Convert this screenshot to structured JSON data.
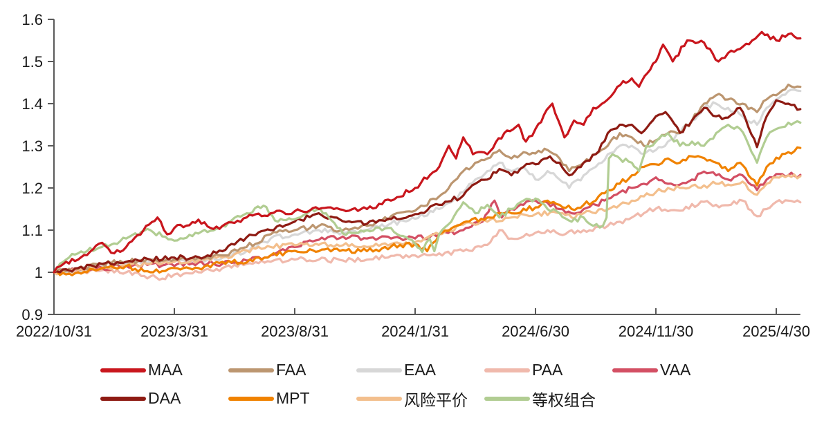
{
  "chart_data": {
    "type": "line",
    "title": "",
    "xlabel": "",
    "ylabel": "",
    "x_unit": "months since 2022/10/31",
    "ylim": [
      0.9,
      1.6
    ],
    "y_tick_labels": [
      "0.9",
      "1",
      "1.1",
      "1.2",
      "1.3",
      "1.4",
      "1.5",
      "1.6"
    ],
    "x_tick_labels": [
      "2022/10/31",
      "2023/3/31",
      "2023/8/31",
      "2024/1/31",
      "2024/6/30",
      "2024/11/30",
      "2025/4/30"
    ],
    "x_tick_months": [
      0,
      5,
      10,
      15,
      20,
      25,
      30
    ],
    "end_month": 31,
    "grid": false,
    "legend_position": "bottom",
    "legend_rows": [
      [
        "MAA",
        "FAA",
        "EAA",
        "PAA",
        "VAA"
      ],
      [
        "DAA",
        "MPT",
        "风险平价",
        "等权组合"
      ]
    ],
    "draw_order": [
      "PAA",
      "EAA",
      "VAA",
      "风险平价",
      "MPT",
      "FAA",
      "DAA",
      "等权组合",
      "MAA"
    ],
    "axis_color": "#595959",
    "label_color": "#1a1a1a",
    "series": [
      {
        "name": "MAA",
        "color": "#C9161D",
        "x": [
          0,
          0.5,
          1,
          2,
          2.5,
          3,
          4.3,
          4.7,
          5,
          6,
          6.5,
          7,
          8,
          9,
          10,
          11,
          12,
          13,
          14,
          15,
          16,
          16.4,
          16.7,
          17,
          17.4,
          18,
          18.7,
          19.3,
          19.6,
          20,
          20.7,
          21.2,
          21.6,
          22,
          22.4,
          23,
          23.4,
          24,
          24.3,
          25,
          25.3,
          25.7,
          26.3,
          27,
          27.6,
          28,
          29,
          29.4,
          30,
          30.5,
          31
        ],
        "y": [
          1.0,
          1.025,
          1.03,
          1.07,
          1.045,
          1.06,
          1.13,
          1.09,
          1.105,
          1.125,
          1.105,
          1.11,
          1.13,
          1.14,
          1.145,
          1.15,
          1.148,
          1.15,
          1.17,
          1.2,
          1.25,
          1.3,
          1.27,
          1.32,
          1.28,
          1.28,
          1.33,
          1.35,
          1.31,
          1.34,
          1.4,
          1.32,
          1.36,
          1.35,
          1.39,
          1.41,
          1.44,
          1.46,
          1.44,
          1.5,
          1.54,
          1.5,
          1.55,
          1.545,
          1.5,
          1.52,
          1.55,
          1.57,
          1.55,
          1.565,
          1.555
        ]
      },
      {
        "name": "FAA",
        "color": "#BC9670",
        "x": [
          0,
          1,
          2,
          3,
          4,
          5,
          6,
          7,
          8,
          9,
          10,
          11,
          12,
          13,
          14,
          15,
          16,
          16.5,
          17,
          17.5,
          18,
          18.5,
          19,
          19.5,
          20,
          20.5,
          21,
          21.4,
          22,
          22.5,
          23,
          23.5,
          24,
          24.5,
          25,
          25.5,
          26,
          26.5,
          27,
          27.5,
          28,
          28.6,
          29.2,
          29.6,
          30,
          30.5,
          31
        ],
        "y": [
          1.0,
          1.008,
          1.02,
          1.025,
          1.03,
          1.03,
          1.035,
          1.04,
          1.06,
          1.09,
          1.1,
          1.11,
          1.1,
          1.11,
          1.133,
          1.146,
          1.18,
          1.21,
          1.24,
          1.26,
          1.27,
          1.29,
          1.27,
          1.285,
          1.282,
          1.29,
          1.27,
          1.24,
          1.26,
          1.28,
          1.3,
          1.33,
          1.32,
          1.3,
          1.313,
          1.33,
          1.33,
          1.36,
          1.4,
          1.42,
          1.41,
          1.4,
          1.38,
          1.41,
          1.42,
          1.445,
          1.44
        ]
      },
      {
        "name": "EAA",
        "color": "#D7D7D7",
        "x": [
          0,
          1,
          2,
          3,
          4,
          5,
          6,
          7,
          8,
          9,
          10,
          11,
          12,
          13,
          14,
          15,
          16,
          17,
          17.5,
          18,
          18.5,
          19,
          19.5,
          20,
          20.5,
          21,
          21.4,
          22,
          22.5,
          23,
          23.5,
          24,
          24.5,
          25,
          25.5,
          26,
          26.5,
          27,
          27.5,
          28,
          28.6,
          29.2,
          29.6,
          30,
          30.5,
          31
        ],
        "y": [
          1.0,
          1.005,
          1.015,
          1.02,
          1.025,
          1.025,
          1.03,
          1.035,
          1.05,
          1.08,
          1.09,
          1.1,
          1.095,
          1.1,
          1.116,
          1.127,
          1.15,
          1.19,
          1.22,
          1.24,
          1.26,
          1.24,
          1.25,
          1.22,
          1.24,
          1.22,
          1.2,
          1.23,
          1.25,
          1.28,
          1.3,
          1.3,
          1.28,
          1.29,
          1.31,
          1.33,
          1.36,
          1.39,
          1.4,
          1.39,
          1.37,
          1.35,
          1.39,
          1.41,
          1.43,
          1.43
        ]
      },
      {
        "name": "PAA",
        "color": "#F0B9AC",
        "x": [
          0,
          1,
          2,
          3,
          4,
          4.5,
          5,
          6,
          7,
          8,
          9,
          10,
          11,
          12,
          13,
          14,
          15,
          16,
          17,
          18,
          18.5,
          19,
          19.5,
          20,
          20.5,
          21,
          22,
          23,
          23.5,
          24,
          24.5,
          25,
          25.5,
          26,
          27,
          27.5,
          28,
          28.6,
          29.2,
          29.6,
          30,
          30.5,
          31
        ],
        "y": [
          1.0,
          0.998,
          1.005,
          1.0,
          0.99,
          0.985,
          0.995,
          1.0,
          1.01,
          1.02,
          1.025,
          1.03,
          1.03,
          1.028,
          1.03,
          1.039,
          1.04,
          1.045,
          1.05,
          1.065,
          1.1,
          1.08,
          1.085,
          1.094,
          1.1,
          1.09,
          1.1,
          1.11,
          1.12,
          1.13,
          1.14,
          1.151,
          1.145,
          1.146,
          1.167,
          1.16,
          1.159,
          1.17,
          1.133,
          1.15,
          1.167,
          1.17,
          1.166
        ]
      },
      {
        "name": "VAA",
        "color": "#D34F63",
        "x": [
          0,
          1,
          2,
          3,
          4,
          5,
          6,
          7,
          8,
          9,
          10,
          11,
          12,
          13,
          14,
          15,
          16,
          17,
          17.8,
          18.3,
          18.6,
          19,
          19.5,
          20,
          20.5,
          21,
          21.5,
          22,
          22.5,
          23,
          23.5,
          24,
          24.5,
          25,
          25.5,
          26,
          26.5,
          27,
          27.5,
          28,
          28.6,
          29.2,
          29.6,
          30,
          30.5,
          31
        ],
        "y": [
          1.0,
          1.005,
          1.01,
          1.015,
          1.02,
          1.015,
          1.023,
          1.02,
          1.028,
          1.04,
          1.06,
          1.077,
          1.085,
          1.08,
          1.08,
          1.08,
          1.09,
          1.1,
          1.12,
          1.17,
          1.13,
          1.15,
          1.16,
          1.17,
          1.165,
          1.15,
          1.14,
          1.15,
          1.16,
          1.175,
          1.19,
          1.2,
          1.21,
          1.225,
          1.21,
          1.208,
          1.22,
          1.239,
          1.23,
          1.22,
          1.23,
          1.195,
          1.22,
          1.233,
          1.23,
          1.231
        ]
      },
      {
        "name": "DAA",
        "color": "#8E1B13",
        "x": [
          0,
          1,
          2,
          3,
          4,
          5,
          6,
          7,
          8,
          9,
          10,
          11,
          12,
          13,
          14,
          15,
          16,
          17,
          17.5,
          18,
          18.5,
          19,
          19.5,
          20,
          20.6,
          21,
          21.4,
          22,
          22.5,
          23,
          23.5,
          24,
          24.4,
          25,
          25.4,
          26,
          26.5,
          27,
          27.5,
          28,
          28.5,
          29.2,
          29.6,
          30,
          30.5,
          31
        ],
        "y": [
          1.0,
          1.01,
          1.02,
          1.025,
          1.03,
          1.035,
          1.036,
          1.05,
          1.083,
          1.1,
          1.12,
          1.14,
          1.121,
          1.115,
          1.126,
          1.138,
          1.16,
          1.182,
          1.21,
          1.22,
          1.245,
          1.23,
          1.25,
          1.256,
          1.275,
          1.26,
          1.23,
          1.26,
          1.28,
          1.33,
          1.35,
          1.35,
          1.33,
          1.37,
          1.38,
          1.331,
          1.36,
          1.39,
          1.37,
          1.367,
          1.39,
          1.297,
          1.37,
          1.408,
          1.4,
          1.387
        ]
      },
      {
        "name": "MPT",
        "color": "#F08200",
        "x": [
          0,
          0.5,
          1,
          2,
          3,
          4,
          5,
          6,
          7,
          8,
          9,
          10,
          11,
          12,
          13,
          14,
          15,
          15.5,
          16,
          17,
          18,
          19,
          20,
          20.5,
          21,
          21.5,
          22,
          22.5,
          23,
          23.5,
          24,
          24.5,
          25,
          25.5,
          26,
          26.5,
          27,
          27.5,
          28,
          28.5,
          29.2,
          29.6,
          30,
          30.5,
          31
        ],
        "y": [
          1.0,
          0.995,
          1.0,
          1.01,
          1.015,
          1.0,
          1.01,
          1.01,
          1.025,
          1.023,
          1.04,
          1.051,
          1.05,
          1.053,
          1.05,
          1.061,
          1.067,
          1.05,
          1.09,
          1.118,
          1.13,
          1.14,
          1.154,
          1.17,
          1.16,
          1.15,
          1.16,
          1.17,
          1.195,
          1.21,
          1.23,
          1.25,
          1.256,
          1.27,
          1.26,
          1.275,
          1.271,
          1.26,
          1.24,
          1.26,
          1.206,
          1.25,
          1.272,
          1.285,
          1.295
        ]
      },
      {
        "name": "风险平价",
        "color": "#F3BF8D",
        "x": [
          0,
          1,
          2,
          3,
          4,
          5,
          6,
          7,
          8,
          9,
          10,
          11,
          12,
          13,
          14,
          15,
          16,
          17,
          18,
          19,
          20,
          21,
          21.5,
          22,
          23,
          23.5,
          24,
          24.5,
          25,
          25.5,
          26,
          26.5,
          27,
          27.5,
          28,
          28.6,
          29.2,
          29.6,
          30,
          30.5,
          31
        ],
        "y": [
          1.0,
          1.005,
          1.01,
          1.015,
          1.02,
          1.025,
          1.028,
          1.035,
          1.052,
          1.06,
          1.064,
          1.065,
          1.064,
          1.06,
          1.067,
          1.072,
          1.09,
          1.113,
          1.12,
          1.13,
          1.138,
          1.14,
          1.13,
          1.14,
          1.149,
          1.16,
          1.17,
          1.18,
          1.19,
          1.2,
          1.2,
          1.205,
          1.206,
          1.21,
          1.208,
          1.215,
          1.184,
          1.21,
          1.225,
          1.23,
          1.228
        ]
      },
      {
        "name": "等权组合",
        "color": "#B1CD92",
        "x": [
          0,
          0.5,
          1,
          2,
          3,
          4,
          4.5,
          5,
          6,
          7,
          8,
          8.7,
          9.3,
          10,
          10.7,
          11.3,
          12,
          13,
          14,
          15,
          15.3,
          15.6,
          15.8,
          16,
          16.5,
          17,
          17.5,
          18,
          18.5,
          19,
          19.5,
          20,
          20.5,
          21,
          21.5,
          22,
          22.4,
          22.8,
          22.95,
          23.05,
          23.2,
          23.5,
          24,
          24.3,
          24.6,
          25,
          25.5,
          26,
          26.5,
          27,
          27.5,
          28,
          28.5,
          29.2,
          29.6,
          30,
          30.5,
          31
        ],
        "y": [
          1.0,
          1.03,
          1.045,
          1.06,
          1.08,
          1.1,
          1.085,
          1.075,
          1.092,
          1.11,
          1.14,
          1.158,
          1.12,
          1.126,
          1.15,
          1.14,
          1.092,
          1.1,
          1.105,
          1.067,
          1.048,
          1.08,
          1.05,
          1.09,
          1.12,
          1.166,
          1.14,
          1.16,
          1.13,
          1.15,
          1.17,
          1.175,
          1.15,
          1.14,
          1.12,
          1.13,
          1.11,
          1.11,
          1.13,
          1.27,
          1.28,
          1.27,
          1.26,
          1.24,
          1.3,
          1.31,
          1.33,
          1.3,
          1.31,
          1.3,
          1.33,
          1.35,
          1.34,
          1.26,
          1.32,
          1.34,
          1.355,
          1.355
        ]
      }
    ]
  }
}
